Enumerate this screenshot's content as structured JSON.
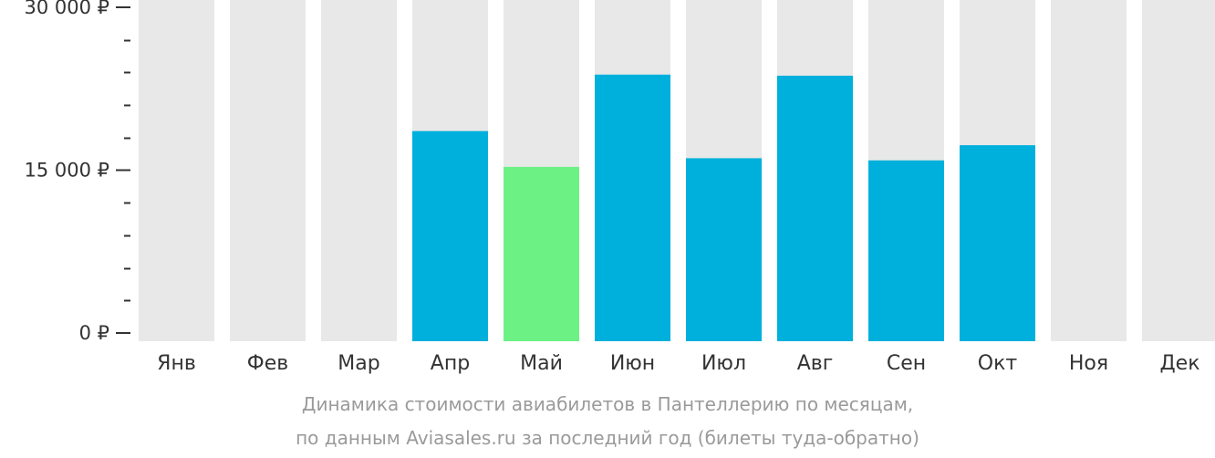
{
  "chart_data": {
    "type": "bar",
    "categories": [
      "Янв",
      "Фев",
      "Мар",
      "Апр",
      "Май",
      "Июн",
      "Июл",
      "Авг",
      "Сен",
      "Окт",
      "Ноя",
      "Дек"
    ],
    "values": [
      null,
      null,
      null,
      18600,
      15300,
      23800,
      16100,
      23700,
      15900,
      17300,
      null,
      null
    ],
    "highlight_category": "Май",
    "y_ticks": [
      {
        "value": 0,
        "label": "0 ₽"
      },
      {
        "value": 15000,
        "label": "15 000 ₽"
      },
      {
        "value": 30000,
        "label": "30 000 ₽"
      }
    ],
    "ylim": [
      0,
      30000
    ],
    "minor_tick_step": 3000,
    "colors": {
      "bar": "#00b0dc",
      "bar_highlight": "#6cf185",
      "bar_background": "#e8e8e8",
      "axis_text": "#333333",
      "caption_text": "#9a9a9a"
    },
    "legend": "none",
    "grid": false
  },
  "caption": {
    "line1": "Динамика стоимости авиабилетов в Пантеллерию по месяцам,",
    "line2": "по данным Aviasales.ru за последний год (билеты туда-обратно)"
  }
}
